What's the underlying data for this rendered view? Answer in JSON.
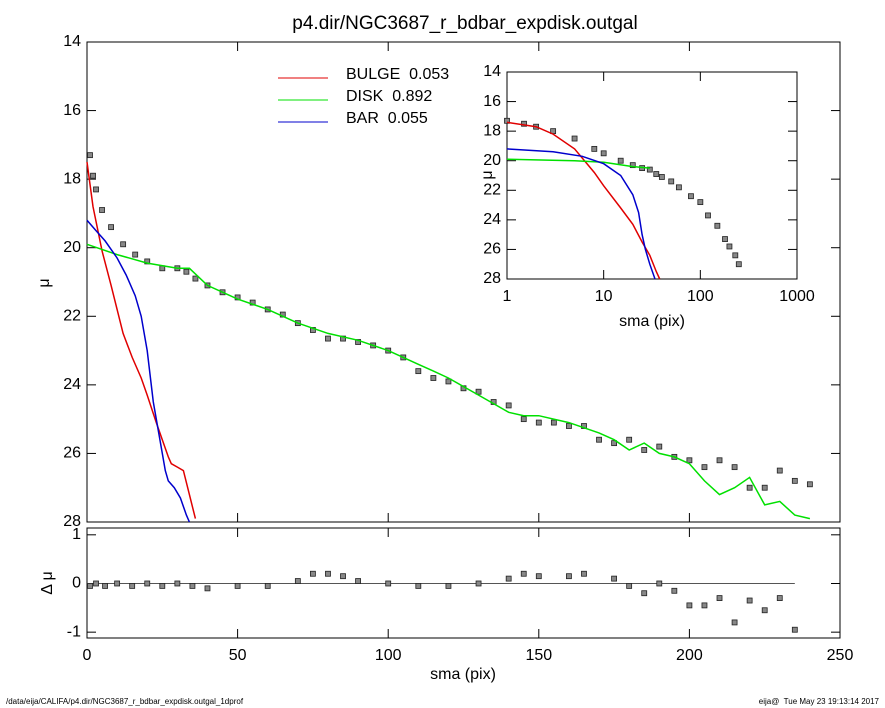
{
  "chart_data": [
    {
      "type": "line",
      "title": "p4.dir/NGC3687_r_bdbar_expdisk.outgal",
      "y_label": "μ",
      "xlim": [
        0,
        250
      ],
      "xticks": [
        0,
        50,
        100,
        150,
        200,
        250
      ],
      "xtick_labels": false,
      "ylim": [
        28,
        14
      ],
      "yticks": [
        14,
        16,
        18,
        20,
        22,
        24,
        26,
        28
      ],
      "series": [
        {
          "mode": "markers",
          "color": "#888888",
          "x": [
            1,
            2,
            3,
            5,
            8,
            12,
            16,
            20,
            25,
            30,
            33,
            36,
            40,
            45,
            50,
            55,
            60,
            65,
            70,
            75,
            80,
            85,
            90,
            95,
            100,
            105,
            110,
            115,
            120,
            125,
            130,
            135,
            140,
            145,
            150,
            155,
            160,
            165,
            170,
            175,
            180,
            185,
            190,
            195,
            200,
            205,
            210,
            215,
            220,
            225,
            230,
            235,
            240
          ],
          "values": [
            17.3,
            17.9,
            18.3,
            18.9,
            19.4,
            19.9,
            20.2,
            20.4,
            20.6,
            20.6,
            20.7,
            20.9,
            21.1,
            21.3,
            21.45,
            21.6,
            21.8,
            21.95,
            22.2,
            22.4,
            22.65,
            22.65,
            22.75,
            22.85,
            23.0,
            23.2,
            23.6,
            23.8,
            23.9,
            24.1,
            24.2,
            24.5,
            24.6,
            25.0,
            25.1,
            25.1,
            25.2,
            25.2,
            25.6,
            25.7,
            25.6,
            25.9,
            25.8,
            26.1,
            26.2,
            26.4,
            26.2,
            26.4,
            27.0,
            27.0,
            26.5,
            26.8,
            26.9
          ]
        },
        {
          "mode": "lines",
          "name": "BULGE  0.053",
          "color": "#e00000",
          "x": [
            0,
            2,
            5,
            8,
            10,
            12,
            15,
            18,
            20,
            23,
            25,
            27,
            28,
            30,
            32,
            34,
            36
          ],
          "values": [
            17.5,
            18.8,
            20.1,
            21.1,
            21.8,
            22.5,
            23.2,
            23.8,
            24.3,
            25.1,
            25.6,
            26.1,
            26.3,
            26.4,
            26.5,
            27.2,
            27.9
          ]
        },
        {
          "mode": "lines",
          "name": "DISK  0.892",
          "color": "#00e000",
          "x": [
            0,
            10,
            20,
            30,
            34,
            40,
            50,
            60,
            70,
            80,
            90,
            100,
            110,
            115,
            120,
            130,
            140,
            145,
            150,
            160,
            170,
            175,
            180,
            185,
            190,
            195,
            200,
            205,
            210,
            215,
            220,
            225,
            230,
            235,
            240
          ],
          "values": [
            19.9,
            20.2,
            20.45,
            20.6,
            20.6,
            21.1,
            21.5,
            21.8,
            22.2,
            22.5,
            22.7,
            23.0,
            23.4,
            23.6,
            23.8,
            24.3,
            24.8,
            24.9,
            24.9,
            25.1,
            25.4,
            25.6,
            25.9,
            25.7,
            26.0,
            26.1,
            26.3,
            26.8,
            27.2,
            27.0,
            26.7,
            27.5,
            27.4,
            27.8,
            27.9
          ]
        },
        {
          "mode": "lines",
          "name": "BAR  0.055",
          "color": "#0000cc",
          "x": [
            0,
            3,
            6,
            10,
            13,
            16,
            18,
            20,
            22,
            24,
            25,
            26,
            27,
            29,
            31,
            33,
            34
          ],
          "values": [
            19.2,
            19.5,
            19.8,
            20.3,
            20.8,
            21.4,
            22.0,
            23.0,
            24.5,
            25.5,
            26.0,
            26.5,
            26.8,
            27.0,
            27.3,
            27.8,
            28.0
          ]
        }
      ]
    },
    {
      "type": "scatter",
      "x_label": "sma (pix)",
      "y_label": "Δ μ",
      "xlim": [
        0,
        250
      ],
      "xticks": [
        0,
        50,
        100,
        150,
        200,
        250
      ],
      "ylim": [
        -1.12,
        1.14
      ],
      "yticks": [
        -1,
        0,
        1
      ],
      "reference_line": 0,
      "series": [
        {
          "mode": "markers",
          "color": "#888888",
          "x": [
            1,
            3,
            6,
            10,
            15,
            20,
            25,
            30,
            35,
            40,
            50,
            60,
            70,
            75,
            80,
            85,
            90,
            100,
            110,
            120,
            130,
            140,
            145,
            150,
            160,
            165,
            175,
            180,
            185,
            190,
            195,
            200,
            205,
            210,
            215,
            220,
            225,
            230,
            235
          ],
          "values": [
            -0.05,
            0.0,
            -0.05,
            0.0,
            -0.05,
            0.0,
            -0.05,
            0.0,
            -0.05,
            -0.1,
            -0.05,
            -0.05,
            0.05,
            0.2,
            0.2,
            0.15,
            0.05,
            0.0,
            -0.05,
            -0.05,
            0.0,
            0.1,
            0.2,
            0.15,
            0.15,
            0.2,
            0.1,
            -0.05,
            -0.2,
            0.0,
            -0.15,
            -0.45,
            -0.45,
            -0.3,
            -0.8,
            -0.35,
            -0.55,
            -0.3,
            -0.95
          ]
        }
      ]
    },
    {
      "type": "line",
      "x_label": "sma (pix)",
      "y_label": "μ",
      "xscale": "log",
      "xlim": [
        1,
        1000
      ],
      "xticks": [
        1,
        10,
        100,
        1000
      ],
      "ylim": [
        28,
        14
      ],
      "yticks": [
        14,
        16,
        18,
        20,
        22,
        24,
        26,
        28
      ],
      "series": [
        {
          "mode": "markers",
          "color": "#888888",
          "x": [
            1,
            1.5,
            2,
            3,
            5,
            8,
            10,
            15,
            20,
            25,
            30,
            35,
            40,
            50,
            60,
            80,
            100,
            120,
            150,
            180,
            200,
            230,
            250
          ],
          "values": [
            17.3,
            17.5,
            17.7,
            18.0,
            18.5,
            19.2,
            19.5,
            20.0,
            20.3,
            20.5,
            20.6,
            20.9,
            21.1,
            21.4,
            21.8,
            22.4,
            22.8,
            23.7,
            24.4,
            25.3,
            25.8,
            26.4,
            27.0
          ]
        },
        {
          "mode": "lines",
          "color": "#e00000",
          "x": [
            1,
            2,
            3,
            5,
            8,
            10,
            15,
            20,
            25,
            30,
            35,
            38
          ],
          "values": [
            17.4,
            17.7,
            18.2,
            19.2,
            20.8,
            21.7,
            23.2,
            24.3,
            25.5,
            26.4,
            27.5,
            28.0
          ]
        },
        {
          "mode": "lines",
          "color": "#00e000",
          "x": [
            1,
            5,
            10,
            20,
            30
          ],
          "values": [
            19.9,
            20.0,
            20.1,
            20.4,
            20.5
          ]
        },
        {
          "mode": "lines",
          "color": "#0000cc",
          "x": [
            1,
            3,
            6,
            10,
            15,
            20,
            23,
            25,
            27,
            30,
            34
          ],
          "values": [
            19.2,
            19.4,
            19.7,
            20.2,
            21.0,
            22.3,
            23.5,
            25.0,
            26.0,
            27.0,
            28.0
          ]
        }
      ]
    }
  ],
  "footer": {
    "left": "/data/eija/CALIFA/p4.dir/NGC3687_r_bdbar_expdisk.outgal_1dprof",
    "right": "eija@  Tue May 23 19:13:14 2017"
  }
}
